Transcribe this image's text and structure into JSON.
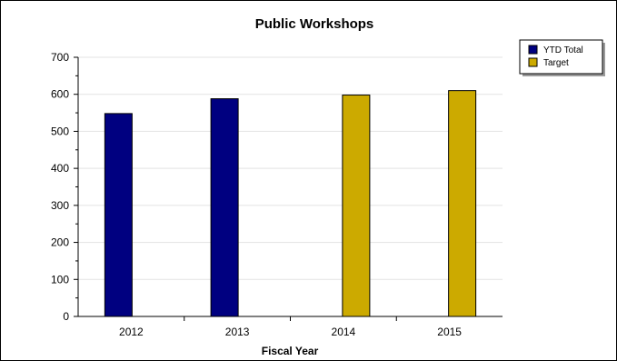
{
  "chart_data": {
    "type": "bar",
    "title": "Public Workshops",
    "xlabel": "Fiscal Year",
    "ylabel": "",
    "categories": [
      "2012",
      "2013",
      "2014",
      "2015"
    ],
    "series": [
      {
        "name": "YTD Total",
        "color": "#000080",
        "values": [
          548,
          588,
          null,
          null
        ]
      },
      {
        "name": "Target",
        "color": "#CCAA00",
        "values": [
          null,
          null,
          598,
          610
        ]
      }
    ],
    "ylim": [
      0,
      700
    ],
    "yticks": [
      0,
      100,
      200,
      300,
      400,
      500,
      600,
      700
    ],
    "grid": true,
    "legend_position": "top-right"
  }
}
